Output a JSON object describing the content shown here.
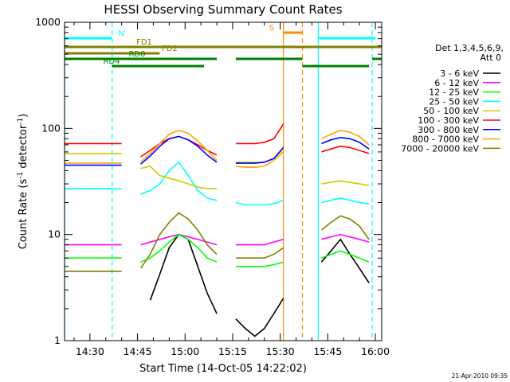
{
  "chart_data": {
    "type": "line",
    "title": "HESSI Observing Summary Count Rates",
    "xlabel": "Start Time (14-Oct-05 14:22:02)",
    "ylabel_prefix": "Count Rate (s",
    "ylabel_sup": "-1",
    "ylabel_middle": " detector",
    "ylabel_suffix": ")",
    "yscale": "log",
    "ylim": [
      1,
      1000
    ],
    "xlim": [
      "14:22",
      "16:02"
    ],
    "x_tick_labels": [
      "14:30",
      "14:45",
      "15:00",
      "15:15",
      "15:30",
      "15:45",
      "16:00"
    ],
    "y_tick_labels": [
      "1",
      "10",
      "100",
      "1000"
    ],
    "legend": {
      "header_line1": "Det 1,3,4,5,6,9,",
      "header_line2": "Att 0",
      "placement": "right"
    },
    "x": [
      "14:22",
      "14:25",
      "14:28",
      "14:31",
      "14:34",
      "14:37",
      "14:40",
      "14:43",
      "14:46",
      "14:49",
      "14:52",
      "14:55",
      "14:58",
      "15:01",
      "15:04",
      "15:07",
      "15:10",
      "15:13",
      "15:16",
      "15:19",
      "15:22",
      "15:25",
      "15:28",
      "15:31",
      "15:34",
      "15:37",
      "15:40",
      "15:43",
      "15:46",
      "15:49",
      "15:52",
      "15:55",
      "15:58",
      "16:01"
    ],
    "series": [
      {
        "name": "3 - 6 keV",
        "color": "#000000",
        "values": [
          null,
          null,
          null,
          null,
          null,
          null,
          null,
          null,
          null,
          2.4,
          4.2,
          7.5,
          10,
          9,
          5,
          2.8,
          1.8,
          null,
          1.6,
          1.3,
          1.1,
          1.3,
          1.8,
          2.5,
          null,
          null,
          null,
          5.5,
          7,
          9,
          6.5,
          4.8,
          3.5,
          null
        ]
      },
      {
        "name": "6 - 12 keV",
        "color": "#ff00ff",
        "values": [
          8,
          8,
          8,
          8,
          8,
          8,
          8,
          null,
          8,
          8.5,
          9,
          9.5,
          10,
          9.5,
          9,
          8.5,
          8,
          null,
          8,
          8,
          8,
          8,
          8.5,
          9,
          null,
          null,
          null,
          9,
          9.5,
          10,
          9.5,
          9,
          8.5,
          null
        ]
      },
      {
        "name": "12 - 25 keV",
        "color": "#00ff00",
        "values": [
          6,
          6,
          6,
          6,
          6,
          6,
          6,
          null,
          5.5,
          6,
          7,
          8.5,
          10,
          9,
          7.5,
          6,
          5.5,
          null,
          5,
          5,
          5,
          5,
          5.2,
          5.5,
          null,
          null,
          null,
          6,
          6.5,
          7,
          6.5,
          6,
          5.5,
          null
        ]
      },
      {
        "name": "25 - 50 keV",
        "color": "#00ffff",
        "values": [
          27,
          27,
          27,
          27,
          27,
          27,
          27,
          null,
          24,
          26,
          30,
          40,
          48,
          36,
          26,
          22,
          21,
          null,
          20,
          19,
          19,
          19,
          19.5,
          21,
          null,
          null,
          null,
          20,
          21,
          22,
          21,
          20,
          19.5,
          null
        ]
      },
      {
        "name": "50 - 100 keV",
        "color": "#cccc00",
        "values": [
          58,
          58,
          58,
          58,
          58,
          58,
          58,
          null,
          42,
          44,
          36,
          34,
          32,
          30,
          28,
          27,
          27,
          null,
          48,
          48,
          48,
          48,
          52,
          64,
          null,
          null,
          null,
          30,
          31,
          32,
          31,
          30,
          29,
          null
        ]
      },
      {
        "name": "100 - 300 keV",
        "color": "#ff0000",
        "values": [
          72,
          72,
          72,
          72,
          72,
          72,
          72,
          null,
          54,
          62,
          72,
          80,
          84,
          78,
          70,
          62,
          56,
          null,
          72,
          72,
          72,
          74,
          80,
          110,
          null,
          null,
          null,
          60,
          64,
          68,
          66,
          62,
          58,
          null
        ]
      },
      {
        "name": "300 - 800 keV",
        "color": "#0000ff",
        "values": [
          45,
          45,
          45,
          45,
          45,
          45,
          45,
          null,
          46,
          55,
          68,
          80,
          84,
          78,
          68,
          56,
          48,
          null,
          47,
          47,
          47,
          48,
          52,
          66,
          null,
          null,
          null,
          72,
          78,
          82,
          80,
          74,
          64,
          null
        ]
      },
      {
        "name": "800 - 7000 keV",
        "color": "#ffa500",
        "values": [
          47,
          47,
          47,
          47,
          47,
          47,
          47,
          null,
          48,
          58,
          72,
          88,
          96,
          90,
          76,
          62,
          50,
          null,
          44,
          43,
          43,
          44,
          50,
          60,
          null,
          null,
          null,
          80,
          88,
          96,
          92,
          84,
          70,
          null
        ]
      },
      {
        "name": "7000 - 20000 keV",
        "color": "#808000",
        "values": [
          4.5,
          4.5,
          4.5,
          4.5,
          4.5,
          4.5,
          4.5,
          null,
          4.8,
          6.5,
          10,
          13,
          16,
          14,
          11,
          8,
          6.5,
          null,
          6,
          6,
          6,
          6,
          6.5,
          7.5,
          null,
          null,
          null,
          11,
          13,
          15,
          14,
          12,
          9,
          null
        ]
      }
    ],
    "flags": [
      {
        "label": "N",
        "color": "#00ffff",
        "segments": [
          [
            "14:22",
            "14:37"
          ],
          [
            "15:42",
            "16:00"
          ]
        ]
      },
      {
        "label": "S",
        "color": "#ff8c00",
        "segments": [
          [
            "15:31",
            "15:37"
          ]
        ]
      },
      {
        "label": "FD1",
        "color": "#808000",
        "segments": [
          [
            "14:22",
            "16:02"
          ]
        ]
      },
      {
        "label": "FD2",
        "color": "#808000",
        "segments": [
          [
            "14:22",
            "14:52"
          ]
        ]
      },
      {
        "label": "RD0",
        "color": "#008000",
        "segments": [
          [
            "14:22",
            "15:10"
          ],
          [
            "15:16",
            "15:37"
          ],
          [
            "15:59",
            "16:02"
          ]
        ]
      },
      {
        "label": "RD4",
        "color": "#008000",
        "segments": [
          [
            "14:37",
            "15:06"
          ],
          [
            "15:37",
            "15:58"
          ]
        ]
      }
    ],
    "vlines": [
      {
        "x": "14:22",
        "color": "#00ffff",
        "dash": false
      },
      {
        "x": "14:37",
        "color": "#00ffff",
        "dash": true
      },
      {
        "x": "15:31",
        "color": "#ff8c00",
        "dash": false
      },
      {
        "x": "15:37",
        "color": "#ff8c00",
        "dash": true
      },
      {
        "x": "15:42",
        "color": "#00ffff",
        "dash": false
      },
      {
        "x": "15:59",
        "color": "#00ffff",
        "dash": true
      }
    ],
    "grid": false
  },
  "footer_date": "21-Apr-2010 09:35"
}
